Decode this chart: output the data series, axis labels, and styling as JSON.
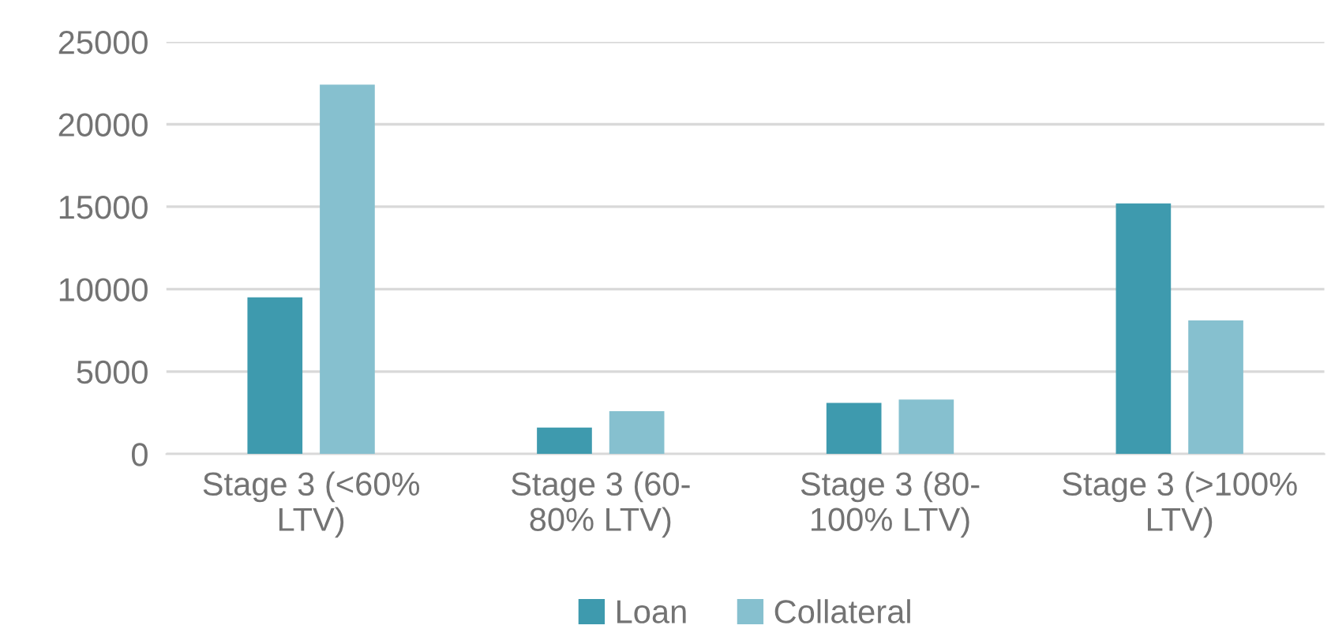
{
  "chart_data": {
    "type": "bar",
    "categories": [
      "Stage 3 (<60%\nLTV)",
      "Stage 3 (60-\n80% LTV)",
      "Stage 3 (80-\n100% LTV)",
      "Stage 3 (>100%\nLTV)"
    ],
    "series": [
      {
        "name": "Loan",
        "color": "#3e9aae",
        "values": [
          9500,
          1600,
          3100,
          15200
        ]
      },
      {
        "name": "Collateral",
        "color": "#86c0cf",
        "values": [
          22400,
          2600,
          3300,
          8100
        ]
      }
    ],
    "ylim": [
      0,
      25000
    ],
    "yticks": [
      0,
      5000,
      10000,
      15000,
      20000,
      25000
    ],
    "grid": "y",
    "legend": "bottom"
  }
}
